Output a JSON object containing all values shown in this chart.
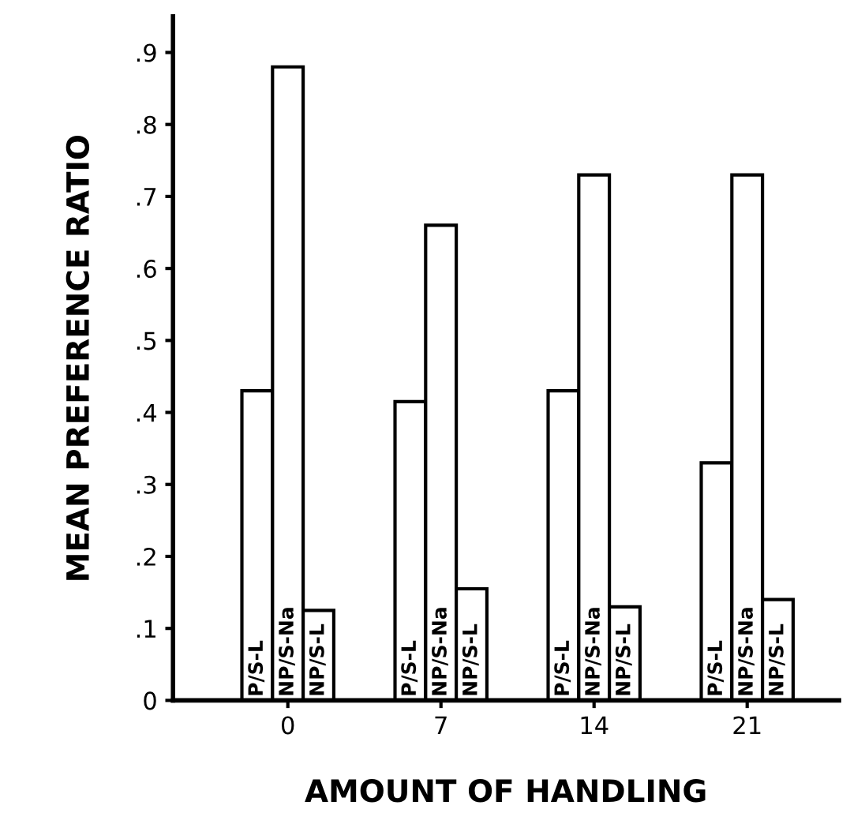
{
  "chart_data": {
    "type": "bar",
    "xlabel": "AMOUNT OF HANDLING",
    "ylabel": "MEAN PREFERENCE RATIO",
    "categories": [
      "0",
      "7",
      "14",
      "21"
    ],
    "series": [
      {
        "name": "P/S-L",
        "color": "#ffffff",
        "values": [
          0.43,
          0.415,
          0.43,
          0.33
        ]
      },
      {
        "name": "NP/S-Na",
        "color": "#ffffff",
        "values": [
          0.88,
          0.66,
          0.73,
          0.73
        ]
      },
      {
        "name": "NP/S-L",
        "color": "#ffffff",
        "values": [
          0.125,
          0.155,
          0.13,
          0.14
        ]
      }
    ],
    "ylim": [
      0,
      0.95
    ],
    "yticks": [
      {
        "value": 0,
        "label": "0"
      },
      {
        "value": 0.1,
        "label": ".1"
      },
      {
        "value": 0.2,
        "label": ".2"
      },
      {
        "value": 0.3,
        "label": ".3"
      },
      {
        "value": 0.4,
        "label": ".4"
      },
      {
        "value": 0.5,
        "label": ".5"
      },
      {
        "value": 0.6,
        "label": ".6"
      },
      {
        "value": 0.7,
        "label": ".7"
      },
      {
        "value": 0.8,
        "label": ".8"
      },
      {
        "value": 0.9,
        "label": ".9"
      }
    ],
    "grid": false,
    "legend": false
  }
}
